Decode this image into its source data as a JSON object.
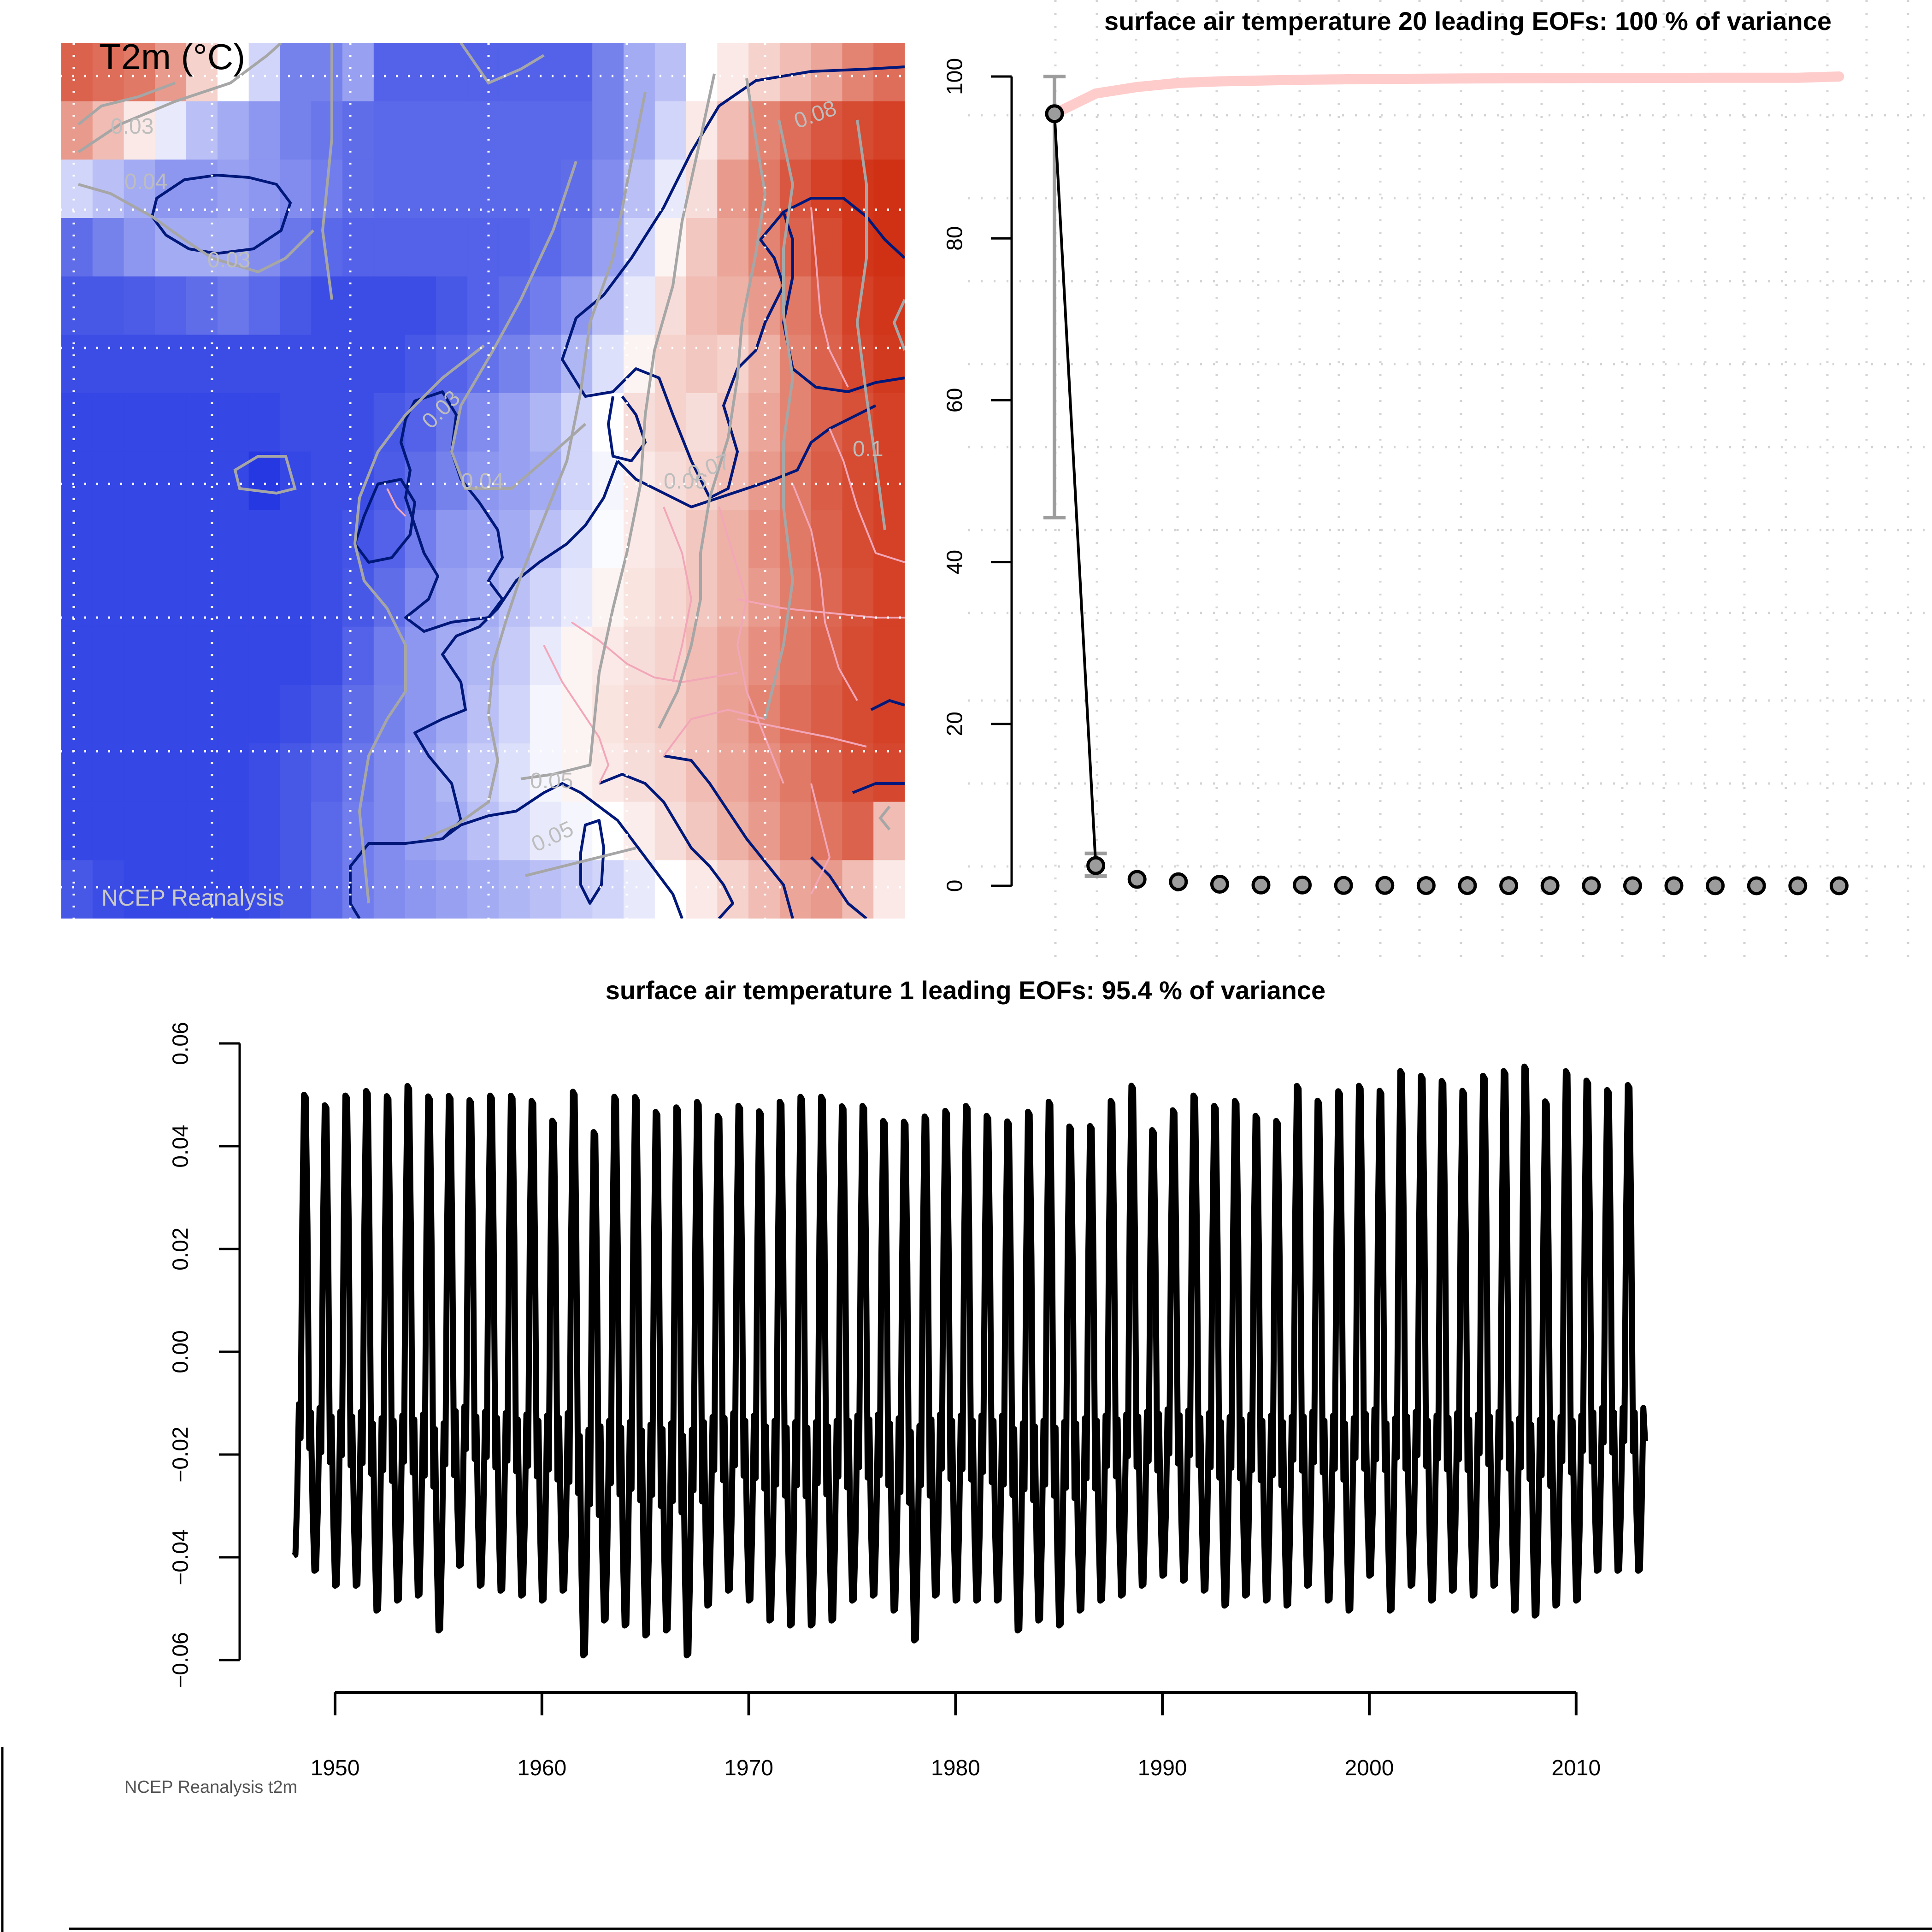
{
  "map_panel": {
    "title": "T2m (°C)",
    "source": "NCEP Reanalysis",
    "contour_labels": [
      "0.03",
      "0.04",
      "0.03",
      "0.03",
      "0.04",
      "0.05",
      "0.05",
      "0.06",
      "0.07",
      "0.08",
      "0.1"
    ],
    "colors": {
      "cold": "#1a2ee0",
      "mid": "#ffffff",
      "warm": "#cc1f00",
      "coastline": "#00187a",
      "borders": "#f2a6b8",
      "contours": "#a6a6a6"
    },
    "grid": [
      [
        0.7,
        0.65,
        0.6,
        0.45,
        0.2,
        0.0,
        -0.2,
        -0.6,
        -0.6,
        -0.45,
        -0.75,
        -0.75,
        -0.75,
        -0.75,
        -0.75,
        -0.75,
        -0.75,
        -0.6,
        -0.4,
        -0.3,
        0.0,
        0.1,
        0.2,
        0.3,
        0.4,
        0.55,
        0.65
      ],
      [
        0.45,
        0.3,
        0.1,
        -0.1,
        -0.3,
        -0.4,
        -0.5,
        -0.6,
        -0.65,
        -0.7,
        -0.72,
        -0.72,
        -0.72,
        -0.72,
        -0.72,
        -0.72,
        -0.72,
        -0.6,
        -0.4,
        -0.2,
        0.1,
        0.3,
        0.55,
        0.65,
        0.75,
        0.8,
        0.85
      ],
      [
        -0.2,
        -0.3,
        -0.4,
        -0.5,
        -0.5,
        -0.45,
        -0.5,
        -0.55,
        -0.62,
        -0.7,
        -0.72,
        -0.72,
        -0.72,
        -0.72,
        -0.72,
        -0.72,
        -0.7,
        -0.55,
        -0.3,
        -0.1,
        0.15,
        0.45,
        0.6,
        0.75,
        0.85,
        0.9,
        0.92
      ],
      [
        -0.7,
        -0.6,
        -0.5,
        -0.4,
        -0.4,
        -0.4,
        -0.55,
        -0.65,
        -0.72,
        -0.75,
        -0.75,
        -0.75,
        -0.75,
        -0.75,
        -0.75,
        -0.72,
        -0.65,
        -0.45,
        -0.2,
        0.05,
        0.25,
        0.4,
        0.55,
        0.7,
        0.8,
        0.9,
        0.92
      ],
      [
        -0.8,
        -0.8,
        -0.78,
        -0.75,
        -0.7,
        -0.65,
        -0.72,
        -0.8,
        -0.85,
        -0.85,
        -0.85,
        -0.85,
        -0.8,
        -0.75,
        -0.7,
        -0.62,
        -0.5,
        -0.3,
        -0.1,
        0.15,
        0.3,
        0.35,
        0.45,
        0.6,
        0.72,
        0.85,
        0.9
      ],
      [
        -0.85,
        -0.85,
        -0.85,
        -0.85,
        -0.85,
        -0.85,
        -0.85,
        -0.85,
        -0.85,
        -0.85,
        -0.85,
        -0.8,
        -0.75,
        -0.68,
        -0.6,
        -0.5,
        -0.35,
        -0.15,
        0.05,
        0.2,
        0.25,
        0.2,
        0.35,
        0.55,
        0.7,
        0.82,
        0.88
      ],
      [
        -0.88,
        -0.88,
        -0.88,
        -0.88,
        -0.88,
        -0.88,
        -0.88,
        -0.85,
        -0.85,
        -0.85,
        -0.8,
        -0.75,
        -0.65,
        -0.55,
        -0.45,
        -0.35,
        -0.2,
        0.0,
        0.15,
        0.2,
        0.15,
        0.25,
        0.4,
        0.55,
        0.7,
        0.78,
        0.85
      ],
      [
        -0.88,
        -0.88,
        -0.88,
        -0.88,
        -0.88,
        -0.88,
        -0.95,
        -0.88,
        -0.85,
        -0.85,
        -0.78,
        -0.7,
        -0.6,
        -0.5,
        -0.45,
        -0.4,
        -0.2,
        -0.05,
        0.1,
        0.15,
        0.2,
        0.3,
        0.45,
        0.6,
        0.72,
        0.8,
        0.85
      ],
      [
        -0.88,
        -0.88,
        -0.88,
        -0.88,
        -0.88,
        -0.88,
        -0.88,
        -0.88,
        -0.85,
        -0.82,
        -0.75,
        -0.62,
        -0.5,
        -0.45,
        -0.4,
        -0.3,
        -0.15,
        -0.02,
        0.1,
        0.15,
        0.25,
        0.35,
        0.5,
        0.6,
        0.7,
        0.8,
        0.85
      ],
      [
        -0.88,
        -0.88,
        -0.88,
        -0.88,
        -0.88,
        -0.88,
        -0.88,
        -0.88,
        -0.85,
        -0.8,
        -0.7,
        -0.55,
        -0.45,
        -0.4,
        -0.3,
        -0.2,
        -0.1,
        0.05,
        0.12,
        0.18,
        0.25,
        0.35,
        0.45,
        0.58,
        0.68,
        0.78,
        0.85
      ],
      [
        -0.88,
        -0.88,
        -0.88,
        -0.88,
        -0.88,
        -0.88,
        -0.88,
        -0.88,
        -0.85,
        -0.75,
        -0.62,
        -0.5,
        -0.4,
        -0.35,
        -0.25,
        -0.1,
        0.05,
        0.1,
        0.15,
        0.2,
        0.3,
        0.4,
        0.5,
        0.6,
        0.7,
        0.8,
        0.85
      ],
      [
        -0.88,
        -0.88,
        -0.88,
        -0.88,
        -0.88,
        -0.88,
        -0.88,
        -0.85,
        -0.8,
        -0.7,
        -0.6,
        -0.5,
        -0.4,
        -0.3,
        -0.2,
        -0.05,
        0.05,
        0.12,
        0.18,
        0.22,
        0.3,
        0.42,
        0.55,
        0.65,
        0.72,
        0.8,
        0.85
      ],
      [
        -0.88,
        -0.88,
        -0.88,
        -0.88,
        -0.88,
        -0.88,
        -0.85,
        -0.8,
        -0.75,
        -0.65,
        -0.55,
        -0.45,
        -0.35,
        -0.25,
        -0.15,
        -0.05,
        0.05,
        0.1,
        0.15,
        0.2,
        0.3,
        0.4,
        0.5,
        0.6,
        0.7,
        0.78,
        0.82
      ],
      [
        -0.88,
        -0.88,
        -0.88,
        -0.88,
        -0.88,
        -0.88,
        -0.85,
        -0.8,
        -0.72,
        -0.62,
        -0.55,
        -0.45,
        -0.4,
        -0.3,
        -0.2,
        -0.1,
        -0.05,
        0.0,
        0.08,
        0.15,
        0.25,
        0.35,
        0.45,
        0.55,
        0.62,
        0.7,
        0.3
      ],
      [
        -0.8,
        -0.85,
        -0.88,
        -0.88,
        -0.88,
        -0.88,
        -0.85,
        -0.8,
        -0.72,
        -0.62,
        -0.55,
        -0.5,
        -0.45,
        -0.4,
        -0.35,
        -0.3,
        -0.25,
        -0.2,
        -0.1,
        0.0,
        0.1,
        0.2,
        0.3,
        0.4,
        0.45,
        0.3,
        0.1
      ]
    ]
  },
  "chart_data": [
    {
      "type": "scatter",
      "title": "surface air temperature 20 leading EOFs:  100 % of variance",
      "xlabel": "",
      "ylabel": "",
      "x": [
        1,
        2,
        3,
        4,
        5,
        6,
        7,
        8,
        9,
        10,
        11,
        12,
        13,
        14,
        15,
        16,
        17,
        18,
        19,
        20
      ],
      "ylim": [
        0,
        100
      ],
      "yticks": [
        0,
        20,
        40,
        60,
        80,
        100
      ],
      "grid": true,
      "series": [
        {
          "values": [
            95.4,
            2.5,
            0.8,
            0.5,
            0.2,
            0.1,
            0.1,
            0.05,
            0.05,
            0.03,
            0.03,
            0.02,
            0.02,
            0.01,
            0.01,
            0.01,
            0.01,
            0.0,
            0.0,
            0.0
          ],
          "color": "#9c9c9c",
          "error_bars": [
            [
              45.5,
              100
            ],
            [
              1.2,
              4.0
            ]
          ]
        },
        {
          "values": [
            95.4,
            97.9,
            98.7,
            99.2,
            99.4,
            99.5,
            99.6,
            99.65,
            99.7,
            99.73,
            99.76,
            99.78,
            99.8,
            99.81,
            99.82,
            99.83,
            99.84,
            99.84,
            99.84,
            100
          ],
          "color": "#ffcccc"
        }
      ]
    },
    {
      "type": "line",
      "title": "surface air temperature 1 leading EOFs:  95.4 % of variance",
      "xlabel": "",
      "ylabel": "",
      "xlim": [
        1948,
        2013.4
      ],
      "ylim": [
        -0.06,
        0.06
      ],
      "yticks": [
        -0.06,
        -0.04,
        -0.02,
        0.0,
        0.02,
        0.04,
        0.06
      ],
      "xticks": [
        1950,
        1960,
        1970,
        1980,
        1990,
        2000,
        2010
      ],
      "series": [
        {
          "color": "#000000",
          "annual_maxima": [
            0.053,
            0.051,
            0.053,
            0.054,
            0.053,
            0.055,
            0.053,
            0.053,
            0.052,
            0.053,
            0.053,
            0.052,
            0.048,
            0.054,
            0.046,
            0.053,
            0.053,
            0.05,
            0.051,
            0.052,
            0.049,
            0.051,
            0.05,
            0.052,
            0.053,
            0.053,
            0.051,
            0.051,
            0.048,
            0.048,
            0.049,
            0.05,
            0.051,
            0.049,
            0.048,
            0.05,
            0.052,
            0.047,
            0.047,
            0.052,
            0.055,
            0.046,
            0.05,
            0.053,
            0.051,
            0.052,
            0.049,
            0.048,
            0.055,
            0.052,
            0.054,
            0.055,
            0.054,
            0.058,
            0.057,
            0.056,
            0.054,
            0.057,
            0.058,
            0.059,
            0.052,
            0.058,
            0.056,
            0.054,
            0.055
          ],
          "annual_minima": [
            -0.041,
            -0.044,
            -0.047,
            -0.047,
            -0.052,
            -0.05,
            -0.049,
            -0.056,
            -0.043,
            -0.047,
            -0.048,
            -0.049,
            -0.05,
            -0.048,
            -0.061,
            -0.054,
            -0.055,
            -0.057,
            -0.056,
            -0.061,
            -0.051,
            -0.048,
            -0.05,
            -0.054,
            -0.055,
            -0.055,
            -0.054,
            -0.05,
            -0.049,
            -0.052,
            -0.058,
            -0.049,
            -0.05,
            -0.05,
            -0.05,
            -0.056,
            -0.054,
            -0.055,
            -0.052,
            -0.05,
            -0.049,
            -0.047,
            -0.045,
            -0.046,
            -0.048,
            -0.051,
            -0.049,
            -0.05,
            -0.051,
            -0.047,
            -0.05,
            -0.052,
            -0.045,
            -0.052,
            -0.047,
            -0.05,
            -0.048,
            -0.049,
            -0.047,
            -0.052,
            -0.053,
            -0.051,
            -0.05,
            -0.044,
            -0.044
          ]
        }
      ],
      "footer": "NCEP Reanalysis t2m"
    }
  ]
}
